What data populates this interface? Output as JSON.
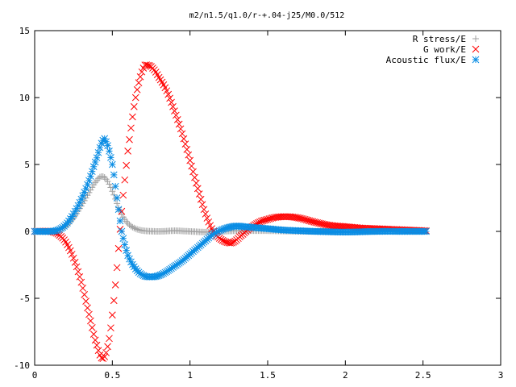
{
  "chart_data": {
    "type": "scatter",
    "title": "m2/n1.5/q1.0/r-+.04-j25/M0.0/512",
    "xlabel": "",
    "ylabel": "",
    "xlim": [
      0,
      3
    ],
    "ylim": [
      -10,
      15
    ],
    "x_ticks": [
      0,
      0.5,
      1,
      1.5,
      2,
      2.5,
      3
    ],
    "x_tick_labels": [
      "0",
      "0.5",
      "1",
      "1.5",
      "2",
      "2.5",
      "3"
    ],
    "y_ticks": [
      -10,
      -5,
      0,
      5,
      10,
      15
    ],
    "y_tick_labels": [
      "-10",
      "-5",
      "0",
      "5",
      "10",
      "15"
    ],
    "grid": false,
    "legend_position": "top-right",
    "series": [
      {
        "name": "R stress/E",
        "marker": "plus",
        "color": "#a0a0a0",
        "x": [
          0.0,
          0.1,
          0.15,
          0.2,
          0.25,
          0.3,
          0.35,
          0.4,
          0.43,
          0.46,
          0.5,
          0.55,
          0.6,
          0.65,
          0.7,
          0.8,
          0.9,
          1.0,
          1.1,
          1.2,
          1.3,
          1.5,
          1.7,
          2.0,
          2.3,
          2.52
        ],
        "y": [
          0.0,
          0.0,
          0.1,
          0.4,
          1.0,
          1.9,
          2.9,
          3.8,
          4.1,
          3.9,
          3.0,
          1.5,
          0.6,
          0.2,
          0.05,
          0.0,
          0.05,
          0.0,
          -0.05,
          0.0,
          0.05,
          0.05,
          0.0,
          0.0,
          0.0,
          0.0
        ]
      },
      {
        "name": "G work/E",
        "marker": "cross",
        "color": "#ff0000",
        "x": [
          0.0,
          0.1,
          0.15,
          0.2,
          0.25,
          0.3,
          0.35,
          0.4,
          0.44,
          0.48,
          0.52,
          0.56,
          0.6,
          0.65,
          0.7,
          0.73,
          0.76,
          0.8,
          0.85,
          0.9,
          0.95,
          1.0,
          1.05,
          1.1,
          1.15,
          1.2,
          1.25,
          1.28,
          1.32,
          1.38,
          1.45,
          1.5,
          1.55,
          1.62,
          1.7,
          1.8,
          1.9,
          2.0,
          2.1,
          2.2,
          2.3,
          2.4,
          2.52
        ],
        "y": [
          0.0,
          0.0,
          -0.2,
          -0.8,
          -2.0,
          -3.8,
          -6.2,
          -8.5,
          -9.5,
          -8.0,
          -4.0,
          1.5,
          6.0,
          10.0,
          12.2,
          12.4,
          12.2,
          11.5,
          10.5,
          9.0,
          7.3,
          5.3,
          3.2,
          1.3,
          0.0,
          -0.6,
          -0.85,
          -0.8,
          -0.4,
          0.2,
          0.7,
          0.9,
          1.05,
          1.1,
          1.0,
          0.7,
          0.45,
          0.35,
          0.25,
          0.2,
          0.15,
          0.1,
          0.05
        ]
      },
      {
        "name": "Acoustic flux/E",
        "marker": "star",
        "color": "#0a8de4",
        "x": [
          0.0,
          0.1,
          0.15,
          0.2,
          0.25,
          0.3,
          0.35,
          0.4,
          0.44,
          0.46,
          0.5,
          0.53,
          0.56,
          0.6,
          0.65,
          0.7,
          0.75,
          0.8,
          0.85,
          0.9,
          0.95,
          1.0,
          1.05,
          1.1,
          1.15,
          1.2,
          1.25,
          1.3,
          1.35,
          1.4,
          1.5,
          1.6,
          1.7,
          1.8,
          2.0,
          2.2,
          2.4,
          2.52
        ],
        "y": [
          0.0,
          0.0,
          0.1,
          0.5,
          1.3,
          2.4,
          3.8,
          5.5,
          6.8,
          6.7,
          5.0,
          2.5,
          0.0,
          -1.8,
          -2.8,
          -3.3,
          -3.4,
          -3.3,
          -3.0,
          -2.6,
          -2.2,
          -1.7,
          -1.2,
          -0.7,
          -0.2,
          0.1,
          0.3,
          0.4,
          0.35,
          0.3,
          0.2,
          0.1,
          0.05,
          0.0,
          -0.05,
          0.0,
          0.0,
          0.0
        ]
      }
    ]
  }
}
